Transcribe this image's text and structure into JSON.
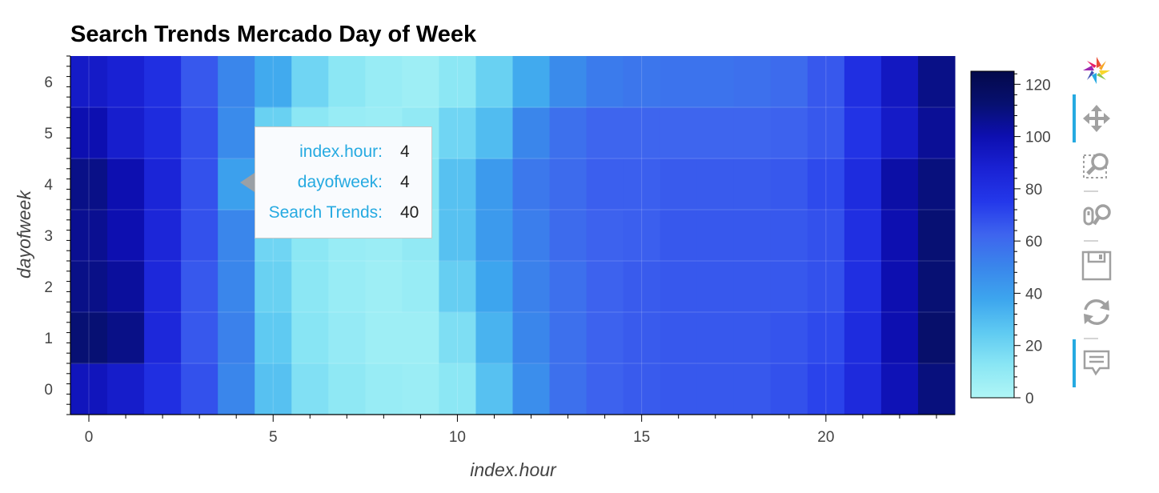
{
  "chart_data": {
    "type": "heatmap",
    "title": "Search Trends Mercado Day of Week",
    "xlabel": "index.hour",
    "ylabel": "dayofweek",
    "x": [
      0,
      1,
      2,
      3,
      4,
      5,
      6,
      7,
      8,
      9,
      10,
      11,
      12,
      13,
      14,
      15,
      16,
      17,
      18,
      19,
      20,
      21,
      22,
      23
    ],
    "y": [
      0,
      1,
      2,
      3,
      4,
      5,
      6
    ],
    "xlim": [
      -0.5,
      23.5
    ],
    "ylim": [
      -0.5,
      6.5
    ],
    "xticks": [
      0,
      5,
      10,
      15,
      20
    ],
    "yticks": [
      0,
      1,
      2,
      3,
      4,
      5,
      6
    ],
    "values": [
      [
        96,
        91,
        80,
        68,
        50,
        28,
        15,
        11,
        8,
        7,
        12,
        28,
        47,
        58,
        63,
        65,
        66,
        66,
        66,
        68,
        72,
        83,
        98,
        110
      ],
      [
        112,
        108,
        84,
        66,
        52,
        25,
        13,
        9,
        6,
        6,
        16,
        33,
        50,
        58,
        63,
        65,
        66,
        66,
        66,
        67,
        70,
        82,
        100,
        114
      ],
      [
        108,
        104,
        84,
        66,
        50,
        22,
        12,
        8,
        6,
        8,
        23,
        38,
        52,
        58,
        63,
        65,
        66,
        66,
        66,
        66,
        68,
        80,
        100,
        112
      ],
      [
        106,
        100,
        85,
        68,
        50,
        20,
        12,
        8,
        7,
        10,
        28,
        42,
        53,
        60,
        63,
        64,
        66,
        66,
        66,
        66,
        68,
        80,
        100,
        112
      ],
      [
        108,
        100,
        86,
        68,
        40,
        16,
        12,
        8,
        8,
        12,
        28,
        42,
        55,
        60,
        64,
        64,
        65,
        65,
        65,
        66,
        70,
        82,
        102,
        110
      ],
      [
        100,
        90,
        82,
        68,
        48,
        22,
        12,
        8,
        7,
        10,
        20,
        30,
        50,
        58,
        62,
        62,
        62,
        62,
        62,
        63,
        66,
        78,
        92,
        105
      ],
      [
        92,
        88,
        80,
        66,
        50,
        36,
        20,
        12,
        8,
        6,
        12,
        22,
        36,
        48,
        54,
        56,
        57,
        57,
        58,
        60,
        66,
        80,
        94,
        108
      ]
    ],
    "colorbar": {
      "min": 0,
      "max": 125,
      "ticks": [
        0,
        20,
        40,
        60,
        80,
        100,
        120
      ]
    },
    "colors": [
      "#b0f6f6",
      "#8ae6f4",
      "#5fcaf2",
      "#3da6ee",
      "#3a86eb",
      "#3e64ee",
      "#2438ea",
      "#1a22d4",
      "#0d0fb0",
      "#071070",
      "#04094a"
    ],
    "grid": true
  },
  "tooltip": {
    "rows": [
      {
        "key": "index.hour:",
        "value": "4"
      },
      {
        "key": "dayofweek:",
        "value": "4"
      },
      {
        "key": "Search Trends:",
        "value": "40"
      }
    ]
  },
  "toolbar": {
    "tools": [
      "bokeh-logo-icon",
      "pan-icon",
      "box-zoom-icon",
      "wheel-zoom-icon",
      "save-icon",
      "reset-icon",
      "hover-icon"
    ]
  }
}
